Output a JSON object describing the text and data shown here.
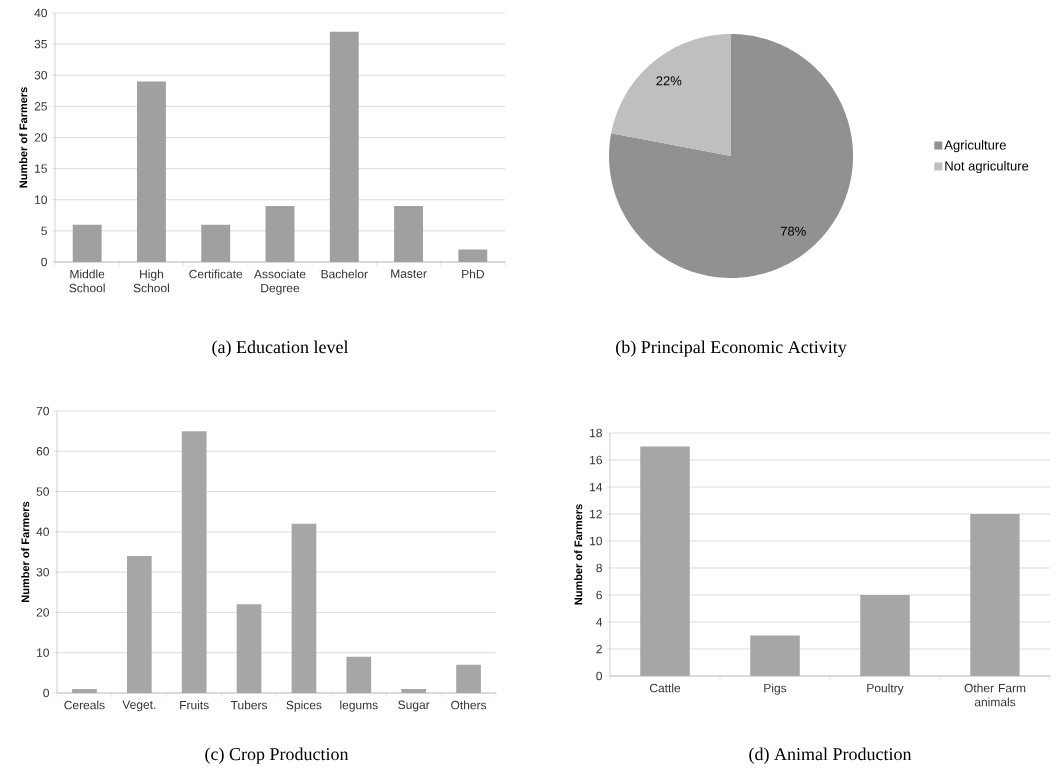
{
  "chart_data": [
    {
      "type": "bar",
      "title": "(a) Education level",
      "ylabel": "Number of Farmers",
      "categories": [
        "Middle School",
        "High School",
        "Certificate",
        "Associate Degree",
        "Bachelor",
        "Master",
        "PhD"
      ],
      "values": [
        6,
        29,
        6,
        9,
        37,
        9,
        2
      ],
      "color": "#a0a0a0",
      "ylim": [
        0,
        40
      ],
      "yticks": [
        0,
        5,
        10,
        15,
        20,
        25,
        30,
        35,
        40
      ],
      "grid": "y"
    },
    {
      "type": "pie",
      "title": "(b) Principal Economic Activity",
      "categories": [
        "Agriculture",
        "Not agriculture"
      ],
      "values": [
        78,
        22
      ],
      "colors": [
        "#919191",
        "#bfbfbf"
      ],
      "value_labels": [
        "78%",
        "22%"
      ],
      "legend": "right"
    },
    {
      "type": "bar",
      "title": "(c) Crop Production",
      "ylabel": "Number of Farmers",
      "categories": [
        "Cereals",
        "Veget.",
        "Fruits",
        "Tubers",
        "Spices",
        "legums",
        "Sugar",
        "Others"
      ],
      "values": [
        1,
        34,
        65,
        22,
        42,
        9,
        1,
        7
      ],
      "color": "#a6a6a6",
      "ylim": [
        0,
        70
      ],
      "yticks": [
        0,
        10,
        20,
        30,
        40,
        50,
        60,
        70
      ],
      "grid": "y"
    },
    {
      "type": "bar",
      "title": "(d) Animal Production",
      "ylabel": "Number of Farmers",
      "categories": [
        "Cattle",
        "Pigs",
        "Poultry",
        "Other Farm animals"
      ],
      "values": [
        17,
        3,
        6,
        12
      ],
      "color": "#a6a6a6",
      "ylim": [
        0,
        18
      ],
      "yticks": [
        0,
        2,
        4,
        6,
        8,
        10,
        12,
        14,
        16,
        18
      ],
      "grid": "y"
    }
  ]
}
